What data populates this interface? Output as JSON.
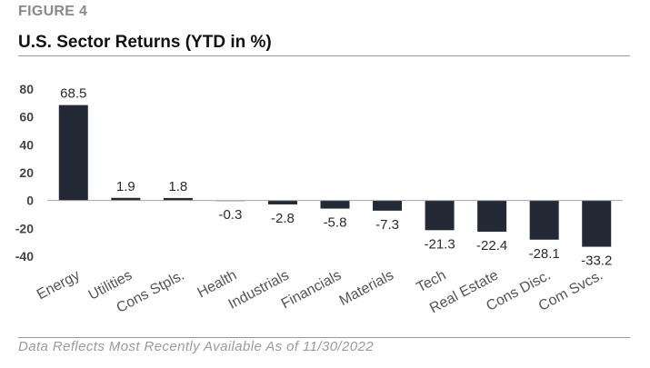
{
  "figure_label": "FIGURE 4",
  "title": "U.S. Sector Returns (YTD in %)",
  "footnote": "Data Reflects Most Recently Available As of 11/30/2022",
  "colors": {
    "bar": "#232a36",
    "axis": "#a6a6a6",
    "rule": "#9a9a9a"
  },
  "chart_data": {
    "type": "bar",
    "title": "U.S. Sector Returns (YTD in %)",
    "xlabel": "",
    "ylabel": "",
    "ylim": [
      -40,
      80
    ],
    "yticks": [
      80,
      60,
      40,
      20,
      0,
      -20,
      -40
    ],
    "categories": [
      "Energy",
      "Utilities",
      "Cons Stpls.",
      "Health",
      "Industrials",
      "Financials",
      "Materials",
      "Tech",
      "Real Estate",
      "Cons Disc.",
      "Com Svcs."
    ],
    "values": [
      68.5,
      1.9,
      1.8,
      -0.3,
      -2.8,
      -5.8,
      -7.3,
      -21.3,
      -22.4,
      -28.1,
      -33.2
    ],
    "data_labels": [
      "68.5",
      "1.9",
      "1.8",
      "-0.3",
      "-2.8",
      "-5.8",
      "-7.3",
      "-21.3",
      "-22.4",
      "-28.1",
      "-33.2"
    ],
    "grid": false,
    "legend": "none"
  }
}
